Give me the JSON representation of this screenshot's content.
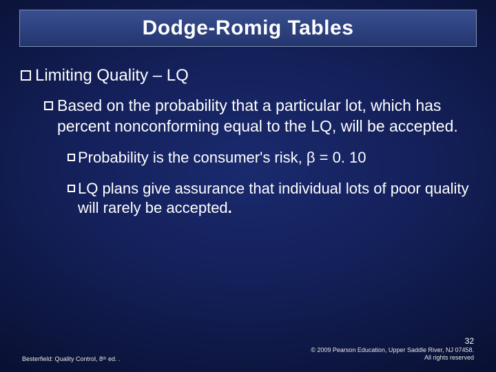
{
  "slide": {
    "title": "Dodge-Romig Tables",
    "bullets": {
      "b1": "Limiting Quality – LQ",
      "b2": "Based on the probability that a particular lot, which has percent nonconforming equal to the LQ, will be accepted.",
      "b3": "Probability is the consumer's risk, β = 0. 10",
      "b4_lead": "LQ",
      "b4_rest": " plans give assurance that individual lots of poor quality will rarely be accepted",
      "b4_period": "."
    },
    "slide_number": "32",
    "footer_left": "Besterfield: Quality Control, 8ᵗʰ ed. .",
    "footer_right_line1": "© 2009 Pearson Education, Upper Saddle River, NJ 07458.",
    "footer_right_line2": "All rights reserved"
  },
  "style": {
    "bg_gradient_inner": "#1a2a6e",
    "bg_gradient_outer": "#020410",
    "title_bar_bg": "#2e4280",
    "title_bar_border": "#8090b0",
    "text_color": "#ffffff",
    "title_fontsize": 30,
    "body_fontsize_l1": 24,
    "body_fontsize_l2": 23,
    "body_fontsize_l3": 22,
    "footer_fontsize": 9,
    "slidenum_fontsize": 12,
    "bullet_square_border": "#ffffff",
    "slide_width": 720,
    "slide_height": 540
  }
}
